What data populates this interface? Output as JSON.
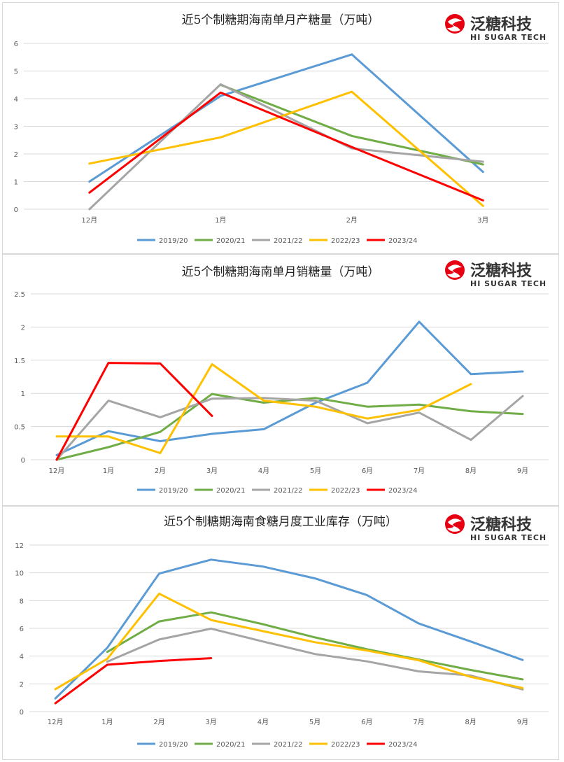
{
  "brand": {
    "name_cn": "泛糖科技",
    "name_en": "HI SUGAR TECH",
    "color": "#e60012"
  },
  "chart_data": [
    {
      "type": "line",
      "title": "近5个制糖期海南单月产糖量（万吨）",
      "categories": [
        "12月",
        "1月",
        "2月",
        "3月"
      ],
      "ylim": [
        0,
        6
      ],
      "yticks": [
        "0",
        "1",
        "2",
        "3",
        "4",
        "5",
        "6"
      ],
      "xlabel": "",
      "ylabel": "",
      "legend_position": "bottom",
      "series": [
        {
          "name": "2019/20",
          "color": "#5b9bd5",
          "values": [
            1.0,
            4.1,
            5.6,
            1.35
          ]
        },
        {
          "name": "2020/21",
          "color": "#70ad47",
          "values": [
            null,
            4.5,
            2.65,
            1.62
          ]
        },
        {
          "name": "2021/22",
          "color": "#a5a5a5",
          "values": [
            0.0,
            4.52,
            2.2,
            1.72
          ]
        },
        {
          "name": "2022/23",
          "color": "#ffc000",
          "values": [
            1.65,
            2.6,
            4.25,
            0.12
          ]
        },
        {
          "name": "2023/24",
          "color": "#ff0000",
          "values": [
            0.6,
            4.22,
            2.25,
            0.32
          ]
        }
      ]
    },
    {
      "type": "line",
      "title": "近5个制糖期海南单月销糖量（万吨）",
      "categories": [
        "12月",
        "1月",
        "2月",
        "3月",
        "4月",
        "5月",
        "6月",
        "7月",
        "8月",
        "9月"
      ],
      "ylim": [
        0,
        2.5
      ],
      "yticks": [
        "0",
        "0.5",
        "1",
        "1.5",
        "2",
        "2.5"
      ],
      "xlabel": "",
      "ylabel": "",
      "legend_position": "bottom",
      "series": [
        {
          "name": "2019/20",
          "color": "#5b9bd5",
          "values": [
            0.07,
            0.43,
            0.28,
            0.39,
            0.46,
            0.86,
            1.16,
            2.08,
            1.29,
            1.33
          ]
        },
        {
          "name": "2020/21",
          "color": "#70ad47",
          "values": [
            0.0,
            0.19,
            0.42,
            0.99,
            0.86,
            0.93,
            0.8,
            0.83,
            0.73,
            0.69
          ]
        },
        {
          "name": "2021/22",
          "color": "#a5a5a5",
          "values": [
            0.0,
            0.89,
            0.64,
            0.92,
            0.93,
            0.89,
            0.55,
            0.71,
            0.3,
            0.96
          ]
        },
        {
          "name": "2022/23",
          "color": "#ffc000",
          "values": [
            0.35,
            0.35,
            0.1,
            1.44,
            0.89,
            0.8,
            0.62,
            0.75,
            1.14,
            null
          ]
        },
        {
          "name": "2023/24",
          "color": "#ff0000",
          "values": [
            0.0,
            1.46,
            1.45,
            0.66,
            null,
            null,
            null,
            null,
            null,
            null
          ]
        }
      ]
    },
    {
      "type": "line",
      "title": "近5个制糖期海南食糖月度工业库存（万吨）",
      "categories": [
        "12月",
        "1月",
        "2月",
        "3月",
        "4月",
        "5月",
        "6月",
        "7月",
        "8月",
        "9月"
      ],
      "ylim": [
        0,
        12
      ],
      "yticks": [
        "0",
        "2",
        "4",
        "6",
        "8",
        "10",
        "12"
      ],
      "xlabel": "",
      "ylabel": "",
      "legend_position": "bottom",
      "series": [
        {
          "name": "2019/20",
          "color": "#5b9bd5",
          "values": [
            0.95,
            4.6,
            9.95,
            10.95,
            10.45,
            9.6,
            8.4,
            6.35,
            5.05,
            3.72
          ]
        },
        {
          "name": "2020/21",
          "color": "#70ad47",
          "values": [
            null,
            4.3,
            6.5,
            7.15,
            6.3,
            5.35,
            4.5,
            3.75,
            3.0,
            2.32
          ]
        },
        {
          "name": "2021/22",
          "color": "#a5a5a5",
          "values": [
            null,
            3.6,
            5.2,
            5.98,
            5.05,
            4.15,
            3.62,
            2.9,
            2.6,
            1.6
          ]
        },
        {
          "name": "2022/23",
          "color": "#ffc000",
          "values": [
            1.62,
            3.8,
            8.5,
            6.6,
            5.8,
            5.0,
            4.4,
            3.7,
            2.5,
            1.7
          ]
        },
        {
          "name": "2023/24",
          "color": "#ff0000",
          "values": [
            0.6,
            3.38,
            3.65,
            3.85,
            null,
            null,
            null,
            null,
            null,
            null
          ]
        }
      ]
    }
  ]
}
